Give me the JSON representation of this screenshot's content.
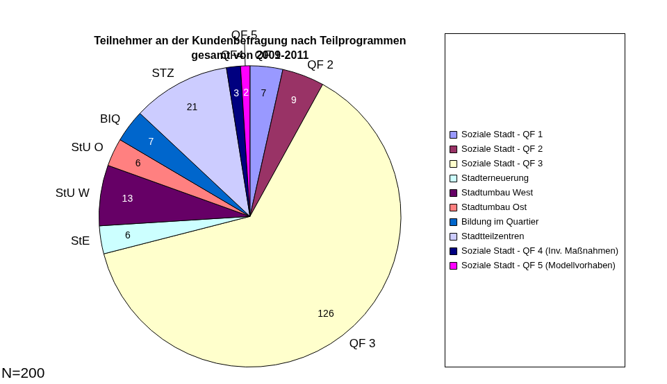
{
  "chart_data": {
    "type": "pie",
    "title": "Teilnehmer an der Kundenbefragung nach Teilprogrammen",
    "subtitle": "gesamt von 2009-2011",
    "categories": [
      "Soziale Stadt - QF 1",
      "Soziale Stadt - QF 2",
      "Soziale Stadt - QF 3",
      "Stadterneuerung",
      "Stadtumbau West",
      "Stadtumbau Ost",
      "Bildung im Quartier",
      "Stadtteilzentren",
      "Soziale Stadt - QF 4 (Inv. Maßnahmen)",
      "Soziale Stadt - QF 5 (Modellvorhaben)"
    ],
    "slice_labels": [
      "QF 1",
      "QF 2",
      "QF 3",
      "StE",
      "StU W",
      "StU O",
      "BIQ",
      "STZ",
      "QF4",
      "QF 5"
    ],
    "values": [
      7,
      9,
      126,
      6,
      13,
      6,
      7,
      21,
      3,
      2
    ],
    "colors": [
      "#9999ff",
      "#993366",
      "#ffffcc",
      "#ccffff",
      "#660066",
      "#ff8080",
      "#0066cc",
      "#ccccff",
      "#000080",
      "#ff00ff"
    ],
    "data_labels": true,
    "legend": "right",
    "annotation": "N=200"
  }
}
